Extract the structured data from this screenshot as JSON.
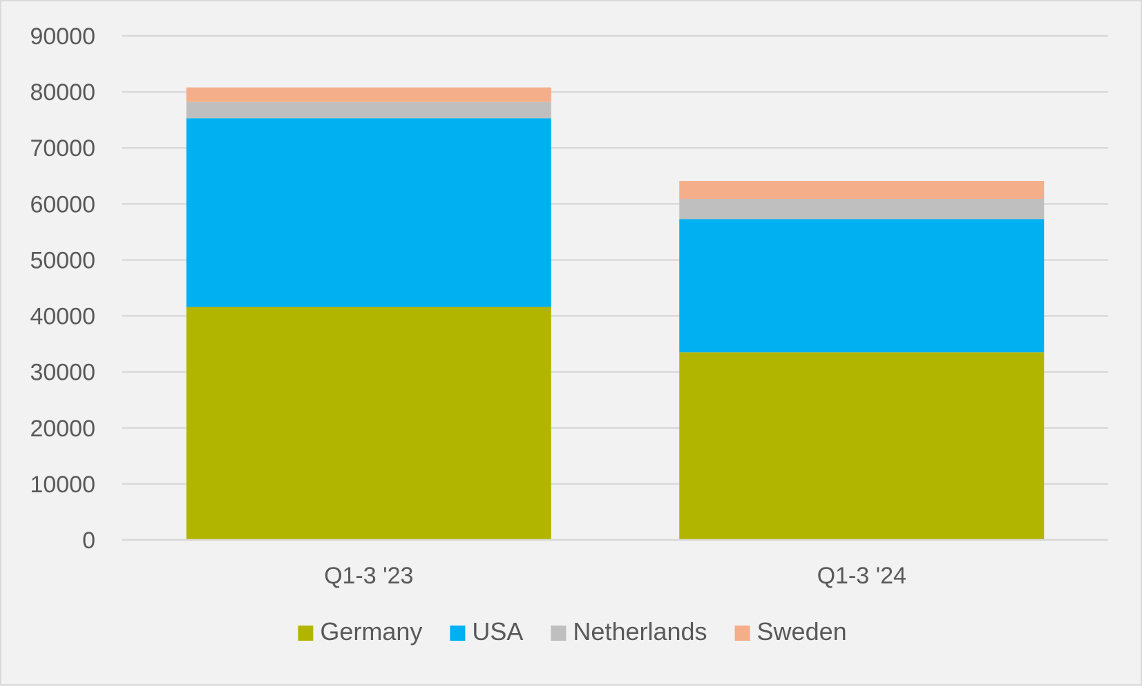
{
  "chart_data": {
    "type": "bar",
    "stacked": true,
    "title": "",
    "xlabel": "",
    "ylabel": "",
    "categories": [
      "Q1-3 '23",
      "Q1-3 '24"
    ],
    "ylim": [
      0,
      90000
    ],
    "yticks": [
      0,
      10000,
      20000,
      30000,
      40000,
      50000,
      60000,
      70000,
      80000,
      90000
    ],
    "ytick_labels": [
      "0",
      "10000",
      "20000",
      "30000",
      "40000",
      "50000",
      "60000",
      "70000",
      "80000",
      "90000"
    ],
    "grid": true,
    "legend_position": "bottom",
    "series": [
      {
        "name": "Germany",
        "color": "#b2b500",
        "values": [
          41600,
          33500
        ]
      },
      {
        "name": "USA",
        "color": "#00b0f0",
        "values": [
          33700,
          23800
        ]
      },
      {
        "name": "Netherlands",
        "color": "#bfbfbf",
        "values": [
          2900,
          3600
        ]
      },
      {
        "name": "Sweden",
        "color": "#f4ae8a",
        "values": [
          2600,
          3200
        ]
      }
    ]
  }
}
